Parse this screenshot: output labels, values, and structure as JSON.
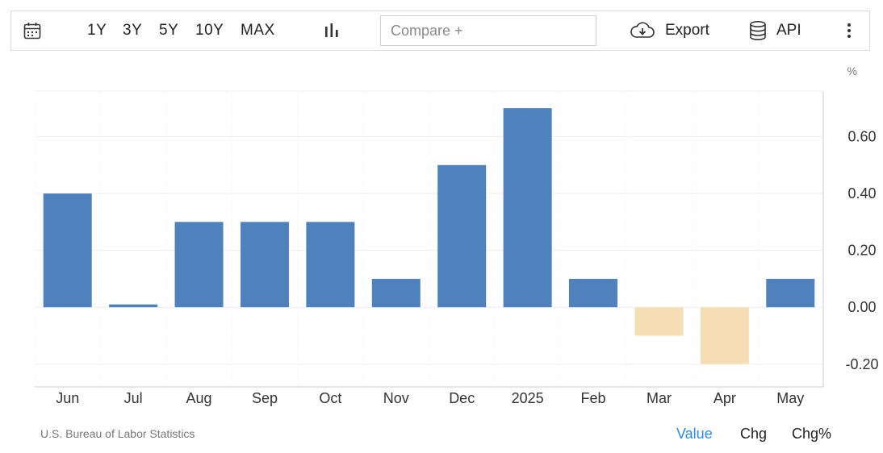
{
  "toolbar": {
    "ranges": [
      "1Y",
      "3Y",
      "5Y",
      "10Y",
      "MAX"
    ],
    "compare_placeholder": "Compare +",
    "export_label": "Export",
    "api_label": "API",
    "icons": {
      "calendar": "calendar-icon",
      "chart_type": "bar-chart-icon",
      "export": "cloud-download-icon",
      "api": "database-icon",
      "menu": "more-vertical-icon"
    }
  },
  "chart_data": {
    "type": "bar",
    "categories": [
      "Jun",
      "Jul",
      "Aug",
      "Sep",
      "Oct",
      "Nov",
      "Dec",
      "2025",
      "Feb",
      "Mar",
      "Apr",
      "May"
    ],
    "values": [
      0.4,
      0.01,
      0.3,
      0.3,
      0.3,
      0.1,
      0.5,
      0.7,
      0.1,
      -0.1,
      -0.2,
      0.1
    ],
    "unit": "%",
    "ylim": [
      -0.28,
      0.76
    ],
    "yticks": [
      -0.2,
      0,
      0.2,
      0.4,
      0.6
    ],
    "ytick_labels": [
      "-0.20",
      "0.00",
      "0.20",
      "0.40",
      "0.60"
    ],
    "grid": true,
    "colors": {
      "positive": "#4f81bd",
      "negative": "#f5deb3"
    }
  },
  "footer": {
    "source": "U.S. Bureau of Labor Statistics",
    "modes": [
      "Value",
      "Chg",
      "Chg%"
    ],
    "active_mode": "Value",
    "active_color": "#2e8be6"
  }
}
